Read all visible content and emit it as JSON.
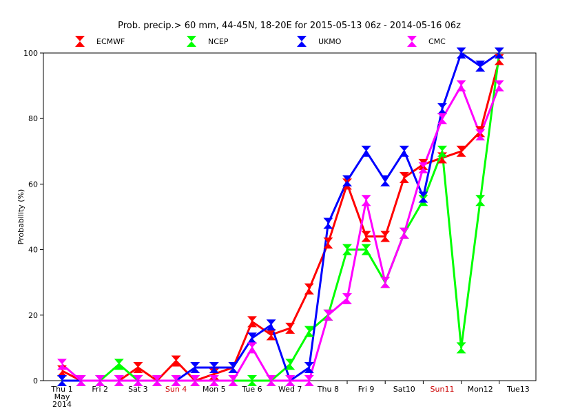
{
  "chart_data": {
    "type": "line",
    "title": "Prob. precip.> 60 mm,  44-45N, 18-20E for 2015-05-13 06z - 2014-05-16 06z",
    "ylabel": "Probability (%)",
    "xlabel": "",
    "ylim": [
      0,
      100
    ],
    "yticks": [
      "0",
      "20",
      "40",
      "60",
      "80",
      "100"
    ],
    "x_ticks": [
      {
        "lines": [
          "Thu 1",
          "May",
          "2014"
        ],
        "color": "#000000"
      },
      {
        "lines": [
          "Fri 2"
        ],
        "color": "#000000"
      },
      {
        "lines": [
          "Sat 3"
        ],
        "color": "#000000"
      },
      {
        "lines": [
          "Sun 4"
        ],
        "color": "#cc0000"
      },
      {
        "lines": [
          "Mon 5"
        ],
        "color": "#000000"
      },
      {
        "lines": [
          "Tue 6"
        ],
        "color": "#000000"
      },
      {
        "lines": [
          "Wed 7"
        ],
        "color": "#000000"
      },
      {
        "lines": [
          "Thu 8"
        ],
        "color": "#000000"
      },
      {
        "lines": [
          "Fri 9"
        ],
        "color": "#000000"
      },
      {
        "lines": [
          "Sat10"
        ],
        "color": "#000000"
      },
      {
        "lines": [
          "Sun11"
        ],
        "color": "#cc0000"
      },
      {
        "lines": [
          "Mon12"
        ],
        "color": "#000000"
      },
      {
        "lines": [
          "Tue13"
        ],
        "color": "#000000"
      }
    ],
    "x_days": [
      0,
      0.5,
      1,
      1.5,
      2,
      2.5,
      3,
      3.5,
      4,
      4.5,
      5,
      5.5,
      6,
      6.5,
      7,
      7.5,
      8,
      8.5,
      9,
      9.5,
      10,
      10.5,
      11,
      11.5
    ],
    "series": [
      {
        "name": "ECMWF",
        "color": "#ff0000",
        "values": [
          3,
          0,
          0,
          0,
          4,
          0,
          6,
          0,
          2,
          4,
          18,
          14,
          16,
          28,
          42,
          60,
          44,
          44,
          62,
          66,
          68,
          70,
          76,
          98
        ]
      },
      {
        "name": "NCEP",
        "color": "#00ff00",
        "values": [
          0,
          0,
          0,
          5,
          0,
          0,
          0,
          0,
          0,
          0,
          0,
          0,
          5,
          15,
          20,
          40,
          40,
          30,
          45,
          55,
          70,
          10,
          55,
          100
        ]
      },
      {
        "name": "UKMO",
        "color": "#0000ff",
        "values": [
          0,
          0,
          0,
          0,
          0,
          0,
          0,
          4,
          4,
          4,
          13,
          17,
          0,
          4,
          48,
          61,
          70,
          61,
          70,
          56,
          83,
          100,
          96,
          100
        ]
      },
      {
        "name": "CMC",
        "color": "#ff00ff",
        "values": [
          5,
          0,
          0,
          0,
          0,
          0,
          0,
          0,
          0,
          0,
          10,
          0,
          0,
          0,
          20,
          25,
          55,
          30,
          45,
          65,
          80,
          90,
          75,
          90
        ]
      }
    ],
    "legend_position": "top",
    "grid": false
  }
}
